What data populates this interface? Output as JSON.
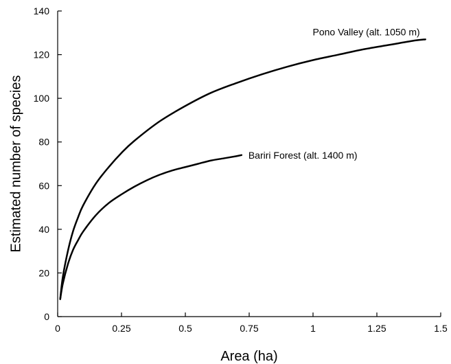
{
  "chart_data": {
    "type": "line",
    "xlabel": "Area (ha)",
    "ylabel": "Estimated number of species",
    "xlim": [
      0,
      1.5
    ],
    "ylim": [
      0,
      140
    ],
    "xticks": [
      0,
      0.25,
      0.5,
      0.75,
      1,
      1.25,
      1.5
    ],
    "xtick_labels": [
      "0",
      "0.25",
      "0.5",
      "0.75",
      "1",
      "1.25",
      "1.5"
    ],
    "yticks": [
      0,
      20,
      40,
      60,
      80,
      100,
      120,
      140
    ],
    "ytick_labels": [
      "0",
      "20",
      "40",
      "60",
      "80",
      "100",
      "120",
      "140"
    ],
    "grid": false,
    "series": [
      {
        "name": "Pono Valley (alt. 1050 m)",
        "x": [
          0.01,
          0.02,
          0.04,
          0.06,
          0.08,
          0.1,
          0.15,
          0.2,
          0.25,
          0.3,
          0.4,
          0.5,
          0.6,
          0.7,
          0.8,
          0.9,
          1.0,
          1.1,
          1.2,
          1.3,
          1.4,
          1.44
        ],
        "y": [
          8,
          18,
          30,
          39,
          45.5,
          51,
          61,
          68.5,
          75,
          80.5,
          89.5,
          96.5,
          102.5,
          107,
          111,
          114.5,
          117.5,
          120,
          122.5,
          124.5,
          126.5,
          127
        ]
      },
      {
        "name": "Bariri Forest (alt. 1400 m)",
        "x": [
          0.01,
          0.02,
          0.04,
          0.06,
          0.08,
          0.1,
          0.15,
          0.2,
          0.25,
          0.3,
          0.35,
          0.4,
          0.45,
          0.5,
          0.55,
          0.6,
          0.65,
          0.7,
          0.72
        ],
        "y": [
          8,
          15,
          24,
          30.5,
          35,
          39,
          46.5,
          52,
          56,
          59.5,
          62.5,
          65,
          67,
          68.5,
          70,
          71.5,
          72.5,
          73.5,
          74
        ]
      }
    ]
  }
}
